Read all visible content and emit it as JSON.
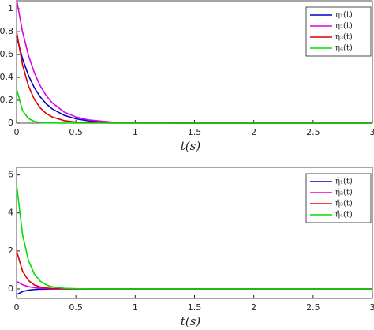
{
  "chart_data": [
    {
      "type": "line",
      "xlabel": "t(s)",
      "x": [
        0,
        0.05,
        0.1,
        0.15,
        0.2,
        0.25,
        0.3,
        0.4,
        0.5,
        0.6,
        0.8,
        1,
        1.5,
        2,
        2.5,
        3
      ],
      "xlim": [
        0,
        3
      ],
      "xticks": [
        0,
        0.5,
        1,
        1.5,
        2,
        2.5,
        3
      ],
      "ylim": [
        0,
        1.07
      ],
      "yticks": [
        0,
        0.2,
        0.4,
        0.6,
        0.8,
        1
      ],
      "legend": "upper-right",
      "series": [
        {
          "name": "η₁(t)",
          "color": "#0000cc",
          "values": [
            0.76,
            0.563,
            0.417,
            0.309,
            0.229,
            0.169,
            0.125,
            0.069,
            0.038,
            0.021,
            0.006,
            0.002,
            0,
            0,
            0,
            0
          ]
        },
        {
          "name": "η₂(t)",
          "color": "#dd00dd",
          "values": [
            1.08,
            0.8,
            0.593,
            0.44,
            0.325,
            0.241,
            0.178,
            0.098,
            0.054,
            0.029,
            0.009,
            0.002,
            0,
            0,
            0,
            0
          ]
        },
        {
          "name": "η₃(t)",
          "color": "#dd0000",
          "values": [
            0.8,
            0.51,
            0.326,
            0.207,
            0.132,
            0.084,
            0.054,
            0.022,
            0.009,
            0.004,
            0.001,
            0,
            0,
            0,
            0,
            0
          ]
        },
        {
          "name": "η₄(t)",
          "color": "#00dd00",
          "values": [
            0.3,
            0.11,
            0.041,
            0.015,
            0.005,
            0.002,
            0.001,
            0,
            0,
            0,
            0,
            0,
            0,
            0,
            0,
            0
          ]
        }
      ]
    },
    {
      "type": "line",
      "xlabel": "t(s)",
      "x": [
        0,
        0.05,
        0.1,
        0.15,
        0.2,
        0.25,
        0.3,
        0.4,
        0.5,
        0.6,
        0.8,
        1,
        1.5,
        2,
        2.5,
        3
      ],
      "xlim": [
        0,
        3
      ],
      "xticks": [
        0,
        0.5,
        1,
        1.5,
        2,
        2.5,
        3
      ],
      "ylim": [
        -0.5,
        6.4
      ],
      "yticks": [
        0,
        2,
        4,
        6
      ],
      "legend": "upper-right",
      "series": [
        {
          "name": "η̂₁(t)",
          "color": "#0000cc",
          "values": [
            -0.3,
            -0.142,
            -0.067,
            -0.032,
            -0.015,
            -0.007,
            -0.003,
            -0.001,
            0,
            0,
            0,
            0,
            0,
            0,
            0,
            0
          ]
        },
        {
          "name": "η̂₂(t)",
          "color": "#dd00dd",
          "values": [
            0.4,
            0.22,
            0.12,
            0.066,
            0.036,
            0.02,
            0.011,
            0.003,
            0.001,
            0,
            0,
            0,
            0,
            0,
            0,
            0
          ]
        },
        {
          "name": "η̂₃(t)",
          "color": "#dd0000",
          "values": [
            2,
            0.944,
            0.446,
            0.21,
            0.1,
            0.048,
            0.022,
            0.005,
            0.001,
            0,
            0,
            0,
            0,
            0,
            0,
            0
          ]
        },
        {
          "name": "η̂₄(t)",
          "color": "#00dd00",
          "values": [
            5.5,
            2.871,
            1.502,
            0.781,
            0.407,
            0.215,
            0.11,
            0.033,
            0.011,
            0.002,
            0,
            0,
            0,
            0,
            0,
            0
          ]
        }
      ]
    }
  ]
}
